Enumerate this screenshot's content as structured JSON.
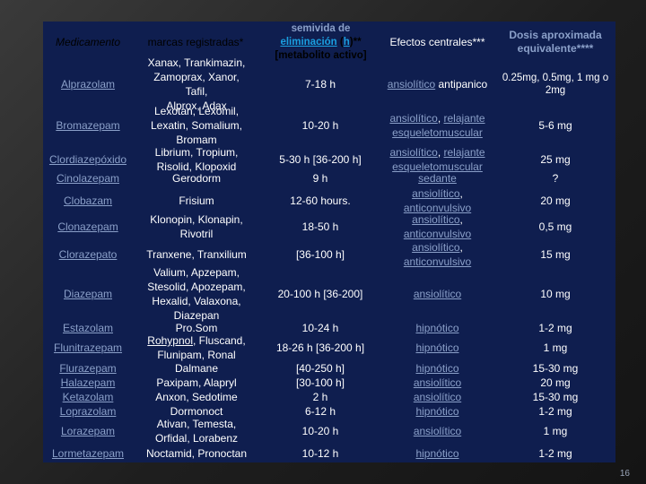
{
  "table": {
    "headers": {
      "drug": "Medicamento",
      "brands": "marcas registradas*",
      "half_life_line1": "semivida de",
      "half_life_link": "eliminación",
      "half_life_open": " (",
      "half_life_h": "h",
      "half_life_close": ")**",
      "half_life_line3": "[metabolito activo]",
      "effects": "Efectos centrales***",
      "dose": "Dosis aproximada equivalente****"
    },
    "rows": [
      {
        "drug": [
          "Alprazolam"
        ],
        "brands": [
          "Xanax, Trankimazin,",
          "Zamoprax, Xanor, Tafil,",
          "Alprox, Adax"
        ],
        "half_life": [
          "7-18 h"
        ],
        "effects": [
          [
            {
              "t": "ansiolítico",
              "l": true
            },
            {
              "t": " antipanico",
              "l": false
            }
          ]
        ],
        "dose": [
          "0.25mg, 0.5mg, 1 mg o",
          "2mg"
        ]
      },
      {
        "drug": [
          "Bromazepam"
        ],
        "brands": [
          "Lexotan, Lexomil,",
          "Lexatin, Somalium,",
          "Bromam"
        ],
        "half_life": [
          "10-20 h"
        ],
        "effects": [
          [
            {
              "t": "ansiolítico",
              "l": true
            },
            {
              "t": ", ",
              "l": false
            },
            {
              "t": "relajante",
              "l": true
            }
          ],
          [
            {
              "t": "esqueletomuscular",
              "l": true
            }
          ]
        ],
        "dose": [
          "5-6 mg"
        ]
      },
      {
        "drug": [
          "Clordiazepóxido"
        ],
        "brands": [
          "Librium, Tropium,",
          "Risolid, Klopoxid"
        ],
        "half_life": [
          "5-30 h [36-200 h]"
        ],
        "effects": [
          [
            {
              "t": "ansiolítico",
              "l": true
            },
            {
              "t": ", ",
              "l": false
            },
            {
              "t": "relajante",
              "l": true
            }
          ],
          [
            {
              "t": "esqueletomuscular",
              "l": true
            }
          ]
        ],
        "dose": [
          "25 mg"
        ]
      },
      {
        "drug": [
          "Cinolazepam"
        ],
        "brands": [
          "Gerodorm"
        ],
        "half_life": [
          "9 h"
        ],
        "effects": [
          [
            {
              "t": "sedante",
              "l": true
            }
          ]
        ],
        "dose": [
          "?"
        ]
      },
      {
        "drug": [
          "Clobazam"
        ],
        "brands": [
          "Frisium"
        ],
        "half_life": [
          "12-60 hours."
        ],
        "effects": [
          [
            {
              "t": "ansiolítico",
              "l": true
            },
            {
              "t": ",",
              "l": false
            }
          ],
          [
            {
              "t": "anticonvulsivo",
              "l": true
            }
          ]
        ],
        "dose": [
          "20 mg"
        ]
      },
      {
        "drug": [
          "Clonazepam"
        ],
        "brands": [
          "Klonopin, Klonapin,",
          "Rivotril"
        ],
        "half_life": [
          "18-50 h"
        ],
        "effects": [
          [
            {
              "t": "ansiolítico",
              "l": true
            },
            {
              "t": ",",
              "l": false
            }
          ],
          [
            {
              "t": "anticonvulsivo",
              "l": true
            }
          ]
        ],
        "dose": [
          "0,5 mg"
        ]
      },
      {
        "drug": [
          "Clorazepato"
        ],
        "brands": [
          "Tranxene, Tranxilium"
        ],
        "half_life": [
          "[36-100 h]"
        ],
        "effects": [
          [
            {
              "t": "ansiolítico",
              "l": true
            },
            {
              "t": ",",
              "l": false
            }
          ],
          [
            {
              "t": "anticonvulsivo",
              "l": true
            }
          ]
        ],
        "dose": [
          "15 mg"
        ]
      },
      {
        "drug": [
          "Diazepam"
        ],
        "brands": [
          "Valium, Apzepam,",
          "Stesolid, Apozepam,",
          "Hexalid, Valaxona,",
          "Diazepan"
        ],
        "half_life": [
          "20-100 h [36-200]"
        ],
        "effects": [
          [
            {
              "t": "ansiolítico",
              "l": true
            }
          ]
        ],
        "dose": [
          "10 mg"
        ]
      },
      {
        "drug": [
          "Estazolam"
        ],
        "brands": [
          "Pro.Som"
        ],
        "half_life": [
          "10-24 h"
        ],
        "effects": [
          [
            {
              "t": "hipnótico",
              "l": true
            }
          ]
        ],
        "dose": [
          "1-2 mg"
        ]
      },
      {
        "drug": [
          "Flunitrazepam"
        ],
        "brands_rich": [
          [
            {
              "t": "Rohypnol",
              "l": true
            },
            {
              "t": ", Fluscand,",
              "l": false
            }
          ],
          [
            {
              "t": "Flunipam, Ronal",
              "l": false
            }
          ]
        ],
        "half_life": [
          "18-26 h [36-200 h]"
        ],
        "effects": [
          [
            {
              "t": "hipnótico",
              "l": true
            }
          ]
        ],
        "dose": [
          "1 mg"
        ]
      },
      {
        "drug": [
          "Flurazepam",
          "Halazepam",
          "Ketazolam",
          "Loprazolam"
        ],
        "brands": [
          "Dalmane",
          "Paxipam, Alapryl",
          "Anxon, Sedotime",
          "Dormonoct"
        ],
        "half_life": [
          "[40-250 h]",
          "[30-100 h]",
          "2 h",
          "6-12 h"
        ],
        "effects": [
          [
            {
              "t": "hipnótico",
              "l": true
            }
          ],
          [
            {
              "t": "ansiolítico",
              "l": true
            }
          ],
          [
            {
              "t": "ansiolítico",
              "l": true
            }
          ],
          [
            {
              "t": "hipnótico",
              "l": true
            }
          ]
        ],
        "dose": [
          "15-30 mg",
          "20 mg",
          "15-30 mg",
          "1-2 mg"
        ]
      },
      {
        "drug": [
          "Lorazepam"
        ],
        "brands": [
          "Ativan, Temesta,",
          "Orfidal, Lorabenz"
        ],
        "half_life": [
          "10-20 h"
        ],
        "effects": [
          [
            {
              "t": "ansiolítico",
              "l": true
            }
          ]
        ],
        "dose": [
          "1 mg"
        ]
      },
      {
        "drug": [
          "Lormetazepam"
        ],
        "brands": [
          "Noctamid, Pronoctan"
        ],
        "half_life": [
          "10-12 h"
        ],
        "effects": [
          [
            {
              "t": "hipnótico",
              "l": true
            }
          ]
        ],
        "dose": [
          "1-2 mg"
        ]
      }
    ]
  },
  "page_number": "16"
}
